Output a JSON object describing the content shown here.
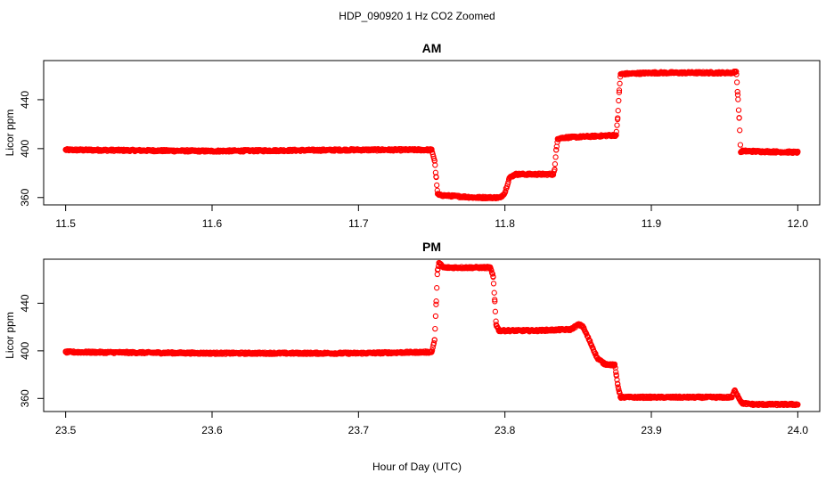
{
  "figure": {
    "title": "HDP_090920  1 Hz CO2 Zoomed",
    "xlabel": "Hour of Day (UTC)"
  },
  "chart_data": [
    {
      "type": "scatter",
      "title": "AM",
      "xlabel": "",
      "ylabel": "Licor ppm",
      "xlim": [
        11.485,
        12.015
      ],
      "ylim": [
        354,
        472
      ],
      "xticks": [
        11.5,
        11.6,
        11.7,
        11.8,
        11.9,
        12.0
      ],
      "xtick_labels": [
        "11.5",
        "11.6",
        "11.7",
        "11.8",
        "11.9",
        "12.0"
      ],
      "yticks": [
        360,
        400,
        440
      ],
      "ytick_labels": [
        "360",
        "400",
        "440"
      ],
      "grid": false,
      "marker_color": "#ff0000",
      "series": [
        {
          "points": [
            [
              11.5,
              399
            ],
            [
              11.6,
              398
            ],
            [
              11.7,
              399
            ],
            [
              11.75,
              399
            ],
            [
              11.752,
              390
            ],
            [
              11.753,
              377
            ],
            [
              11.754,
              363
            ],
            [
              11.755,
              362
            ],
            [
              11.78,
              360
            ],
            [
              11.797,
              360
            ],
            [
              11.8,
              364
            ],
            [
              11.803,
              376
            ],
            [
              11.807,
              379
            ],
            [
              11.833,
              379
            ],
            [
              11.834,
              383
            ],
            [
              11.835,
              399
            ],
            [
              11.836,
              408
            ],
            [
              11.84,
              409
            ],
            [
              11.876,
              411
            ],
            [
              11.877,
              425
            ],
            [
              11.878,
              446
            ],
            [
              11.879,
              461
            ],
            [
              11.9,
              462
            ],
            [
              11.955,
              462
            ],
            [
              11.958,
              463
            ],
            [
              11.959,
              444
            ],
            [
              11.96,
              425
            ],
            [
              11.961,
              397
            ],
            [
              11.962,
              398
            ],
            [
              12.0,
              397
            ]
          ]
        }
      ]
    },
    {
      "type": "scatter",
      "title": "PM",
      "xlabel": "",
      "ylabel": "Licor ppm",
      "xlim": [
        23.485,
        24.015
      ],
      "ylim": [
        349,
        477
      ],
      "xticks": [
        23.5,
        23.6,
        23.7,
        23.8,
        23.9,
        24.0
      ],
      "xtick_labels": [
        "23.5",
        "23.6",
        "23.7",
        "23.8",
        "23.9",
        "24.0"
      ],
      "yticks": [
        360,
        400,
        440
      ],
      "ytick_labels": [
        "360",
        "400",
        "440"
      ],
      "grid": false,
      "marker_color": "#ff0000",
      "series": [
        {
          "points": [
            [
              23.5,
              399
            ],
            [
              23.6,
              398
            ],
            [
              23.7,
              398
            ],
            [
              23.75,
              399
            ],
            [
              23.752,
              409
            ],
            [
              23.753,
              439
            ],
            [
              23.754,
              468
            ],
            [
              23.755,
              474
            ],
            [
              23.758,
              470
            ],
            [
              23.79,
              470
            ],
            [
              23.792,
              462
            ],
            [
              23.793,
              443
            ],
            [
              23.794,
              422
            ],
            [
              23.796,
              417
            ],
            [
              23.82,
              417
            ],
            [
              23.845,
              418
            ],
            [
              23.85,
              422
            ],
            [
              23.853,
              421
            ],
            [
              23.858,
              408
            ],
            [
              23.863,
              394
            ],
            [
              23.868,
              389
            ],
            [
              23.875,
              388
            ],
            [
              23.876,
              380
            ],
            [
              23.877,
              372
            ],
            [
              23.878,
              366
            ],
            [
              23.879,
              361
            ],
            [
              23.9,
              361
            ],
            [
              23.955,
              361
            ],
            [
              23.957,
              367
            ],
            [
              23.96,
              360
            ],
            [
              23.962,
              356
            ],
            [
              23.97,
              355
            ],
            [
              24.0,
              355
            ]
          ]
        }
      ]
    }
  ]
}
